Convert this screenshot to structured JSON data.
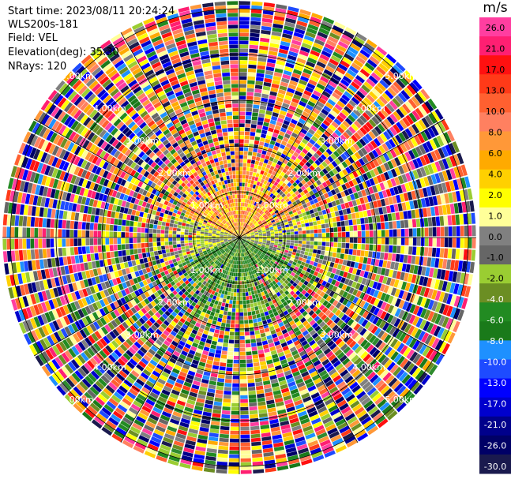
{
  "header": {
    "start_time": "Start time: 2023/08/11 20:24:24",
    "instrument": "WLS200s-181",
    "field": "Field: VEL",
    "elevation": "Elevation(deg): 35.30",
    "nrays": "NRays: 120"
  },
  "colorbar": {
    "unit": "m/s",
    "ticks": [
      "26.0",
      "21.0",
      "17.0",
      "13.0",
      "10.0",
      "8.0",
      "6.0",
      "4.0",
      "2.0",
      "1.0",
      "0.0",
      "-1.0",
      "-2.0",
      "-4.0",
      "-6.0",
      "-8.0",
      "-10.0",
      "-13.0",
      "-17.0",
      "-21.0",
      "-26.0",
      "-30.0"
    ],
    "colors": [
      "#ff3ea0",
      "#ff1f72",
      "#ff1010",
      "#ff3a18",
      "#ff6030",
      "#ff8060",
      "#ff9838",
      "#ffaa00",
      "#ffd000",
      "#ffff00",
      "#ffff99",
      "#808080",
      "#666666",
      "#9acd32",
      "#6b8e23",
      "#228b22",
      "#1a7a1a",
      "#1e90ff",
      "#1e4bff",
      "#0000ff",
      "#0000cd",
      "#00008b",
      "#000066",
      "#1a1a4e"
    ]
  },
  "chart_data": {
    "type": "heatmap",
    "projection": "polar PPI",
    "field": "VEL",
    "units": "m/s",
    "nrays": 120,
    "range_rings_km": [
      "1.00km",
      "2.00km",
      "3.00km",
      "4.00km",
      "5.00km"
    ],
    "value_range": [
      -30.0,
      26.0
    ],
    "pattern": {
      "north_sector": "positive velocities (orange/yellow) near center",
      "south_sector": "negative velocities (green) near center",
      "east_west": "near zero (grey)",
      "outer": "noisy, all colors"
    }
  }
}
